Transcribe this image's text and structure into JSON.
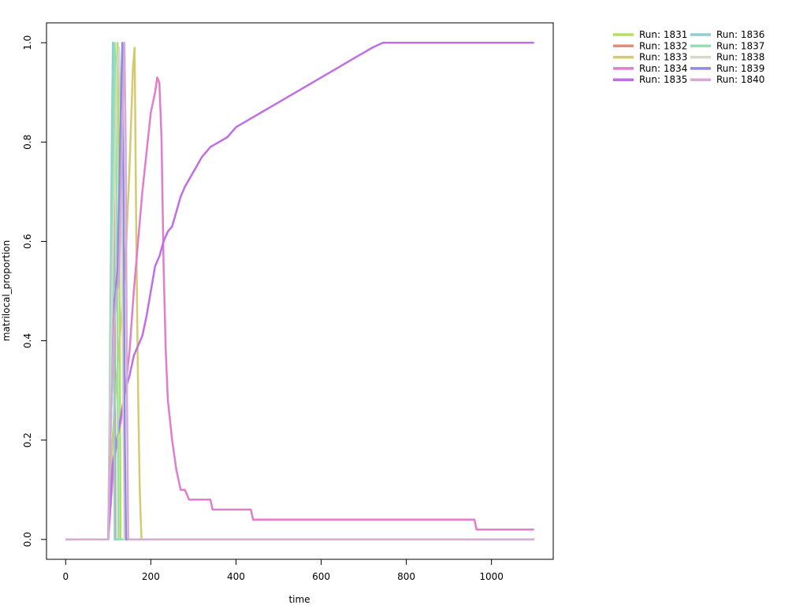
{
  "chart_data": {
    "type": "line",
    "title": "",
    "xlabel": "time",
    "ylabel": "matrilocal_proportion",
    "xlim": [
      -45,
      1145
    ],
    "ylim": [
      -0.04,
      1.04
    ],
    "xticks": [
      0,
      200,
      400,
      600,
      800,
      1000
    ],
    "yticks": [
      0.0,
      0.2,
      0.4,
      0.6,
      0.8,
      1.0
    ],
    "xtick_labels": [
      "0",
      "200",
      "400",
      "600",
      "800",
      "1000"
    ],
    "ytick_labels": [
      "0.0",
      "0.2",
      "0.4",
      "0.6",
      "0.8",
      "1.0"
    ],
    "legend_position": "top-right, outside plot",
    "grid": false,
    "series": [
      {
        "name": "Run: 1831",
        "color": "#b3e061",
        "x": [
          0,
          100,
          103,
          106,
          110,
          114,
          118,
          122,
          126,
          129,
          1100
        ],
        "y": [
          0,
          0,
          0.15,
          0.35,
          0.55,
          0.75,
          0.92,
          1.0,
          0.6,
          0,
          0
        ]
      },
      {
        "name": "Run: 1832",
        "color": "#e48d70",
        "x": [
          0,
          100,
          104,
          107,
          110,
          113,
          115,
          117,
          1100
        ],
        "y": [
          0,
          0,
          0.2,
          0.4,
          0.62,
          0.85,
          0.5,
          0,
          0
        ]
      },
      {
        "name": "Run: 1833",
        "color": "#d4cb6e",
        "x": [
          0,
          100,
          110,
          120,
          130,
          140,
          150,
          158,
          162,
          166,
          170,
          174,
          178,
          1100
        ],
        "y": [
          0,
          0,
          0.2,
          0.33,
          0.44,
          0.55,
          0.75,
          0.95,
          0.99,
          0.6,
          0.3,
          0.1,
          0,
          0
        ]
      },
      {
        "name": "Run: 1834",
        "color": "#e27ccc",
        "x": [
          0,
          100,
          110,
          120,
          130,
          140,
          150,
          160,
          170,
          180,
          190,
          200,
          210,
          215,
          220,
          225,
          230,
          235,
          240,
          245,
          250,
          255,
          260,
          265,
          270,
          280,
          290,
          300,
          340,
          345,
          435,
          440,
          960,
          965,
          1100
        ],
        "y": [
          0,
          0,
          0.12,
          0.2,
          0.24,
          0.3,
          0.38,
          0.5,
          0.6,
          0.7,
          0.78,
          0.86,
          0.9,
          0.93,
          0.92,
          0.81,
          0.55,
          0.38,
          0.28,
          0.24,
          0.2,
          0.17,
          0.14,
          0.12,
          0.1,
          0.1,
          0.08,
          0.08,
          0.08,
          0.06,
          0.06,
          0.04,
          0.04,
          0.02,
          0.02
        ]
      },
      {
        "name": "Run: 1835",
        "color": "#c06ee6",
        "x": [
          0,
          100,
          110,
          120,
          130,
          140,
          150,
          160,
          170,
          180,
          190,
          200,
          210,
          220,
          230,
          240,
          250,
          260,
          270,
          280,
          300,
          320,
          340,
          360,
          380,
          400,
          420,
          440,
          460,
          480,
          500,
          520,
          540,
          560,
          580,
          600,
          620,
          640,
          660,
          680,
          700,
          720,
          745,
          1100
        ],
        "y": [
          0,
          0,
          0.15,
          0.2,
          0.25,
          0.3,
          0.33,
          0.37,
          0.39,
          0.41,
          0.45,
          0.5,
          0.55,
          0.57,
          0.6,
          0.62,
          0.63,
          0.66,
          0.69,
          0.71,
          0.74,
          0.77,
          0.79,
          0.8,
          0.81,
          0.83,
          0.84,
          0.85,
          0.86,
          0.87,
          0.88,
          0.89,
          0.9,
          0.91,
          0.92,
          0.93,
          0.94,
          0.95,
          0.96,
          0.97,
          0.98,
          0.99,
          1.0,
          1.0
        ]
      },
      {
        "name": "Run: 1836",
        "color": "#8ecfd1",
        "x": [
          0,
          100,
          103,
          106,
          109,
          111,
          113,
          115,
          1100
        ],
        "y": [
          0,
          0,
          0.25,
          0.55,
          0.85,
          1.0,
          0.6,
          0,
          0
        ]
      },
      {
        "name": "Run: 1837",
        "color": "#8fe3b2",
        "x": [
          0,
          100,
          103,
          106,
          109,
          112,
          115,
          118,
          121,
          124,
          1100
        ],
        "y": [
          0,
          0,
          0.2,
          0.4,
          0.6,
          0.8,
          1.0,
          0.9,
          0.5,
          0,
          0
        ]
      },
      {
        "name": "Run: 1838",
        "color": "#d7d7c5",
        "x": [
          0,
          100,
          105,
          110,
          115,
          120,
          125,
          130,
          135,
          138,
          1100
        ],
        "y": [
          0,
          0,
          0.3,
          0.55,
          0.75,
          0.95,
          0.99,
          0.8,
          0.3,
          0,
          0
        ]
      },
      {
        "name": "Run: 1839",
        "color": "#8c8de2",
        "x": [
          0,
          100,
          105,
          110,
          114,
          118,
          122,
          126,
          130,
          133,
          136,
          139,
          142,
          1100
        ],
        "y": [
          0,
          0,
          0.2,
          0.35,
          0.48,
          0.5,
          0.55,
          0.7,
          0.9,
          1.0,
          0.7,
          0.2,
          0,
          0
        ]
      },
      {
        "name": "Run: 1840",
        "color": "#d8a9d6",
        "x": [
          0,
          100,
          105,
          110,
          115,
          120,
          125,
          130,
          135,
          138,
          141,
          144,
          147,
          1100
        ],
        "y": [
          0,
          0,
          0.2,
          0.35,
          0.45,
          0.5,
          0.52,
          0.7,
          0.9,
          1.0,
          0.8,
          0.3,
          0,
          0
        ]
      }
    ]
  }
}
